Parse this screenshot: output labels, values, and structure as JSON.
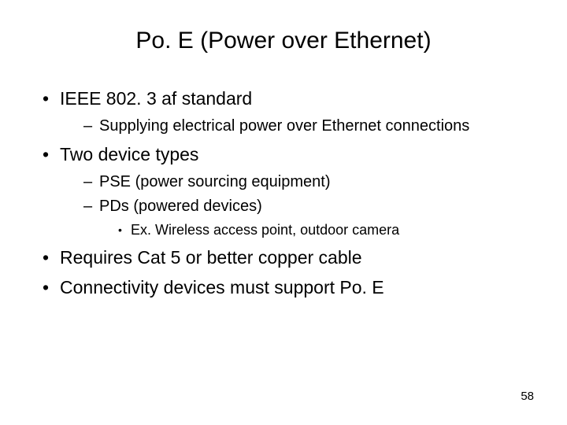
{
  "title": "Po. E (Power over Ethernet)",
  "bullets": {
    "b1": "IEEE 802. 3 af standard",
    "b1_1": "Supplying electrical power over Ethernet connections",
    "b2": "Two device types",
    "b2_1": "PSE (power sourcing equipment)",
    "b2_2": "PDs (powered devices)",
    "b2_2_1": "Ex. Wireless access  point, outdoor camera",
    "b3": "Requires Cat 5 or better copper cable",
    "b4": "Connectivity devices must support Po. E"
  },
  "page_number": "58",
  "styling": {
    "background_color": "#ffffff",
    "text_color": "#000000",
    "title_fontsize": 30,
    "level1_fontsize": 23,
    "level2_fontsize": 20,
    "level3_fontsize": 18,
    "page_number_fontsize": 15,
    "font_family": "Arial"
  }
}
